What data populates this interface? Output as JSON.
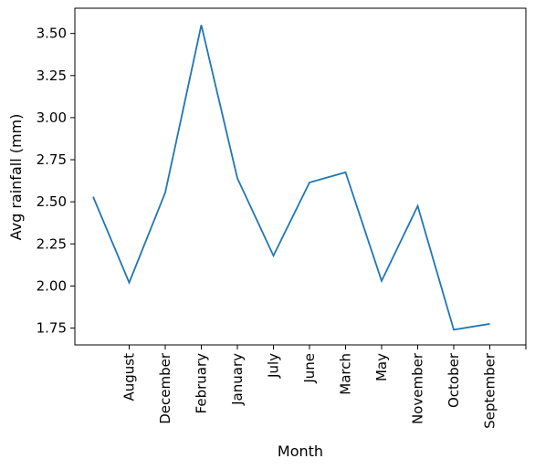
{
  "chart_data": {
    "type": "line",
    "title": "",
    "xlabel": "Month",
    "ylabel": "Avg rainfall (mm)",
    "categories": [
      "",
      "August",
      "December",
      "February",
      "January",
      "July",
      "June",
      "March",
      "May",
      "November",
      "October",
      "September",
      ""
    ],
    "series": [
      {
        "color": "#1f77b4",
        "values": [
          2.53,
          2.02,
          2.555,
          3.55,
          2.64,
          2.18,
          2.615,
          2.675,
          2.03,
          2.475,
          1.74,
          1.775,
          null
        ]
      }
    ],
    "ylim": [
      1.65,
      3.65
    ],
    "yticks": [
      1.75,
      2.0,
      2.25,
      2.5,
      2.75,
      3.0,
      3.25,
      3.5
    ],
    "ytick_labels": [
      "1.75",
      "2.00",
      "2.25",
      "2.50",
      "2.75",
      "3.00",
      "3.25",
      "3.50"
    ],
    "grid": false,
    "legend": "none"
  }
}
